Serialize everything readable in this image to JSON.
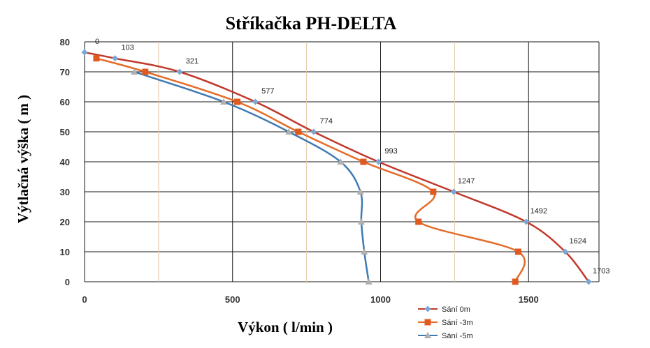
{
  "chart_data": {
    "type": "line",
    "title": "Stříkačka PH-DELTA",
    "xlabel": "Výkon ( l/min )",
    "ylabel": "Výtlačná výška ( m )",
    "xlim": [
      0,
      1700
    ],
    "ylim": [
      0,
      80
    ],
    "x_ticks": [
      0,
      500,
      1000,
      1500
    ],
    "y_ticks": [
      0,
      10,
      20,
      30,
      40,
      50,
      60,
      70,
      80
    ],
    "grid": true,
    "legend_position": "bottom-right",
    "series": [
      {
        "name": "Sání 0m",
        "color": "#c0392b",
        "marker_color": "#7aa6d6",
        "marker": "diamond",
        "points": [
          {
            "x": 0,
            "y": 76.5,
            "label": "0"
          },
          {
            "x": 103,
            "y": 74.5,
            "label": "103"
          },
          {
            "x": 321,
            "y": 70,
            "label": "321"
          },
          {
            "x": 577,
            "y": 60,
            "label": "577"
          },
          {
            "x": 774,
            "y": 50,
            "label": "774"
          },
          {
            "x": 993,
            "y": 40,
            "label": "993"
          },
          {
            "x": 1247,
            "y": 30,
            "label": "1247"
          },
          {
            "x": 1492,
            "y": 20,
            "label": "1492"
          },
          {
            "x": 1624,
            "y": 10,
            "label": "1624"
          },
          {
            "x": 1703,
            "y": 0,
            "label": "1703"
          }
        ]
      },
      {
        "name": "Sání -3m",
        "color": "#e46c2a",
        "marker_color": "#e05a20",
        "marker": "square",
        "points": [
          {
            "x": 40,
            "y": 74.5
          },
          {
            "x": 205,
            "y": 70
          },
          {
            "x": 516,
            "y": 60
          },
          {
            "x": 722,
            "y": 50
          },
          {
            "x": 942,
            "y": 40
          },
          {
            "x": 1178,
            "y": 30
          },
          {
            "x": 1128,
            "y": 20
          },
          {
            "x": 1465,
            "y": 10
          },
          {
            "x": 1455,
            "y": 0
          }
        ]
      },
      {
        "name": "Sání -5m",
        "color": "#3f7ab3",
        "marker_color": "#b0b0b0",
        "marker": "triangle",
        "points": [
          {
            "x": 168,
            "y": 70
          },
          {
            "x": 470,
            "y": 60
          },
          {
            "x": 690,
            "y": 50
          },
          {
            "x": 865,
            "y": 40
          },
          {
            "x": 932,
            "y": 30
          },
          {
            "x": 935,
            "y": 20
          },
          {
            "x": 945,
            "y": 10
          },
          {
            "x": 960,
            "y": 0
          }
        ]
      }
    ]
  }
}
